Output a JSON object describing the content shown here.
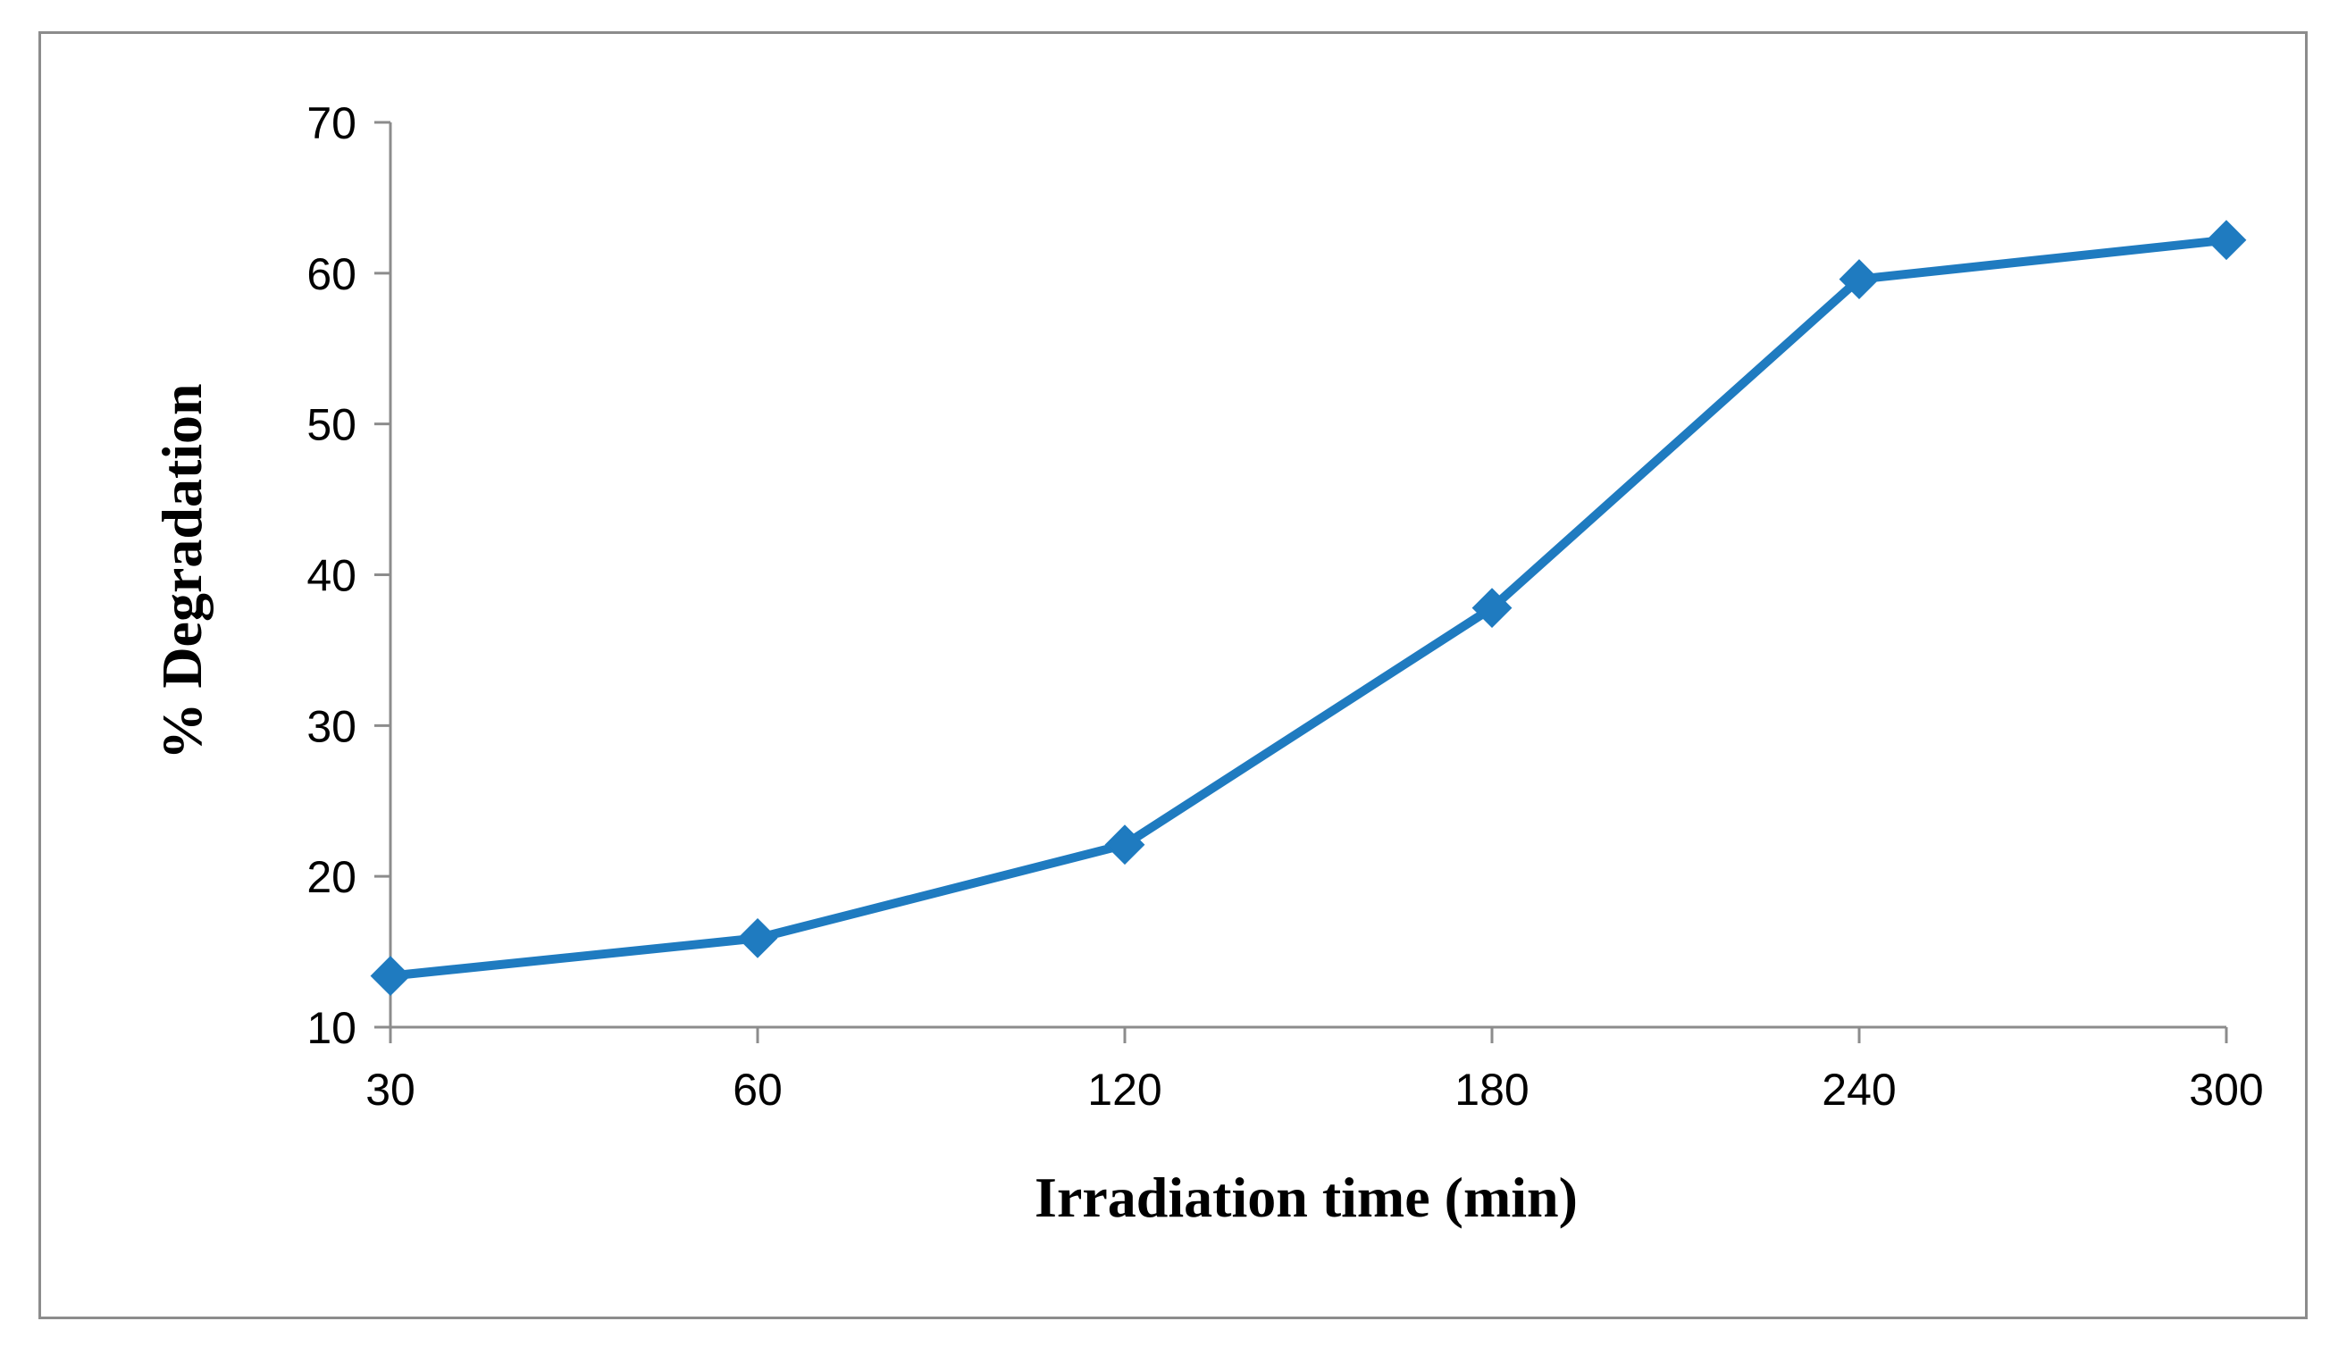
{
  "chart_data": {
    "type": "line",
    "title": "",
    "xlabel": "Irradiation time (min)",
    "ylabel": "% Degradation",
    "categories": [
      "30",
      "60",
      "120",
      "180",
      "240",
      "300"
    ],
    "series": [
      {
        "values": [
          13.4,
          15.9,
          22.1,
          37.8,
          59.6,
          62.2
        ]
      }
    ],
    "ylim": [
      10,
      70
    ],
    "yticks": [
      "10",
      "20",
      "30",
      "40",
      "50",
      "60",
      "70"
    ],
    "grid": false,
    "legend": "none",
    "marker": "diamond",
    "colors": {
      "series": "#1f7bc0",
      "axis": "#8c8c8c",
      "frame": "#8c8c8c"
    }
  }
}
